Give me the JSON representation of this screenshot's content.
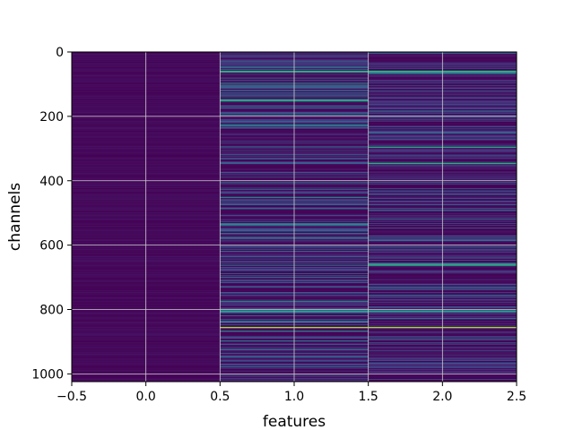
{
  "chart_data": {
    "type": "heatmap",
    "title": "",
    "xlabel": "features",
    "ylabel": "channels",
    "xlim": [
      -0.5,
      2.5
    ],
    "ylim": [
      1024,
      0
    ],
    "y_inverted": true,
    "grid": true,
    "colormap": "viridis",
    "columns": 3,
    "rows": 1024,
    "xticks": [
      -0.5,
      0.0,
      0.5,
      1.0,
      1.5,
      2.0,
      2.5
    ],
    "xtick_labels": [
      "−0.5",
      "0.0",
      "0.5",
      "1.0",
      "1.5",
      "2.0",
      "2.5"
    ],
    "yticks": [
      0,
      200,
      400,
      600,
      800,
      1000
    ],
    "ytick_labels": [
      "0",
      "200",
      "400",
      "600",
      "800",
      "1000"
    ],
    "columns_summary": [
      {
        "feature": 0,
        "typical_level": 0.01,
        "bright_rows": []
      },
      {
        "feature": 1,
        "typical_level": 0.12,
        "bright_rows": [
          855,
          805,
          60,
          150
        ]
      },
      {
        "feature": 2,
        "typical_level": 0.08,
        "bright_rows": [
          855,
          345,
          660,
          295,
          805,
          60
        ]
      }
    ],
    "strong_lines": [
      {
        "row": 855,
        "features": [
          1,
          2
        ],
        "level": 0.85
      }
    ]
  },
  "colors": {
    "background": "#ffffff",
    "grid": "#cccccc",
    "cmap_low": "#440154",
    "cmap_high": "#fde725"
  }
}
